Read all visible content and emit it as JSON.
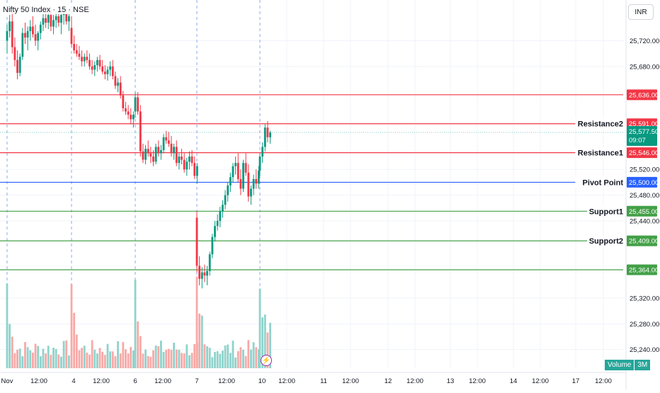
{
  "header": {
    "title": "Nifty 50 Index · 15 · NSE",
    "currency": "INR"
  },
  "price_axis": {
    "ticks": [
      25720,
      25680,
      25520,
      25480,
      25440,
      25320,
      25280,
      25240
    ],
    "tick_labels": [
      "25,720.00",
      "25,680.00",
      "25,520.00",
      "25,480.00",
      "25,440.00",
      "25,320.00",
      "25,280.00",
      "25,240.00"
    ]
  },
  "time_axis": {
    "labels": [
      "Nov",
      "12:00",
      "4",
      "12:00",
      "6",
      "12:00",
      "7",
      "12:00",
      "10",
      "12:00",
      "11",
      "12:00",
      "12",
      "12:00",
      "13",
      "12:00",
      "14",
      "12:00",
      "17",
      "12:00"
    ],
    "session_dividers": [
      "Nov",
      "4",
      "6",
      "7",
      "10"
    ]
  },
  "levels": [
    {
      "name": "",
      "value": 25636,
      "label": "25,636.00",
      "color": "#f23645"
    },
    {
      "name": "Resistance2",
      "value": 25591,
      "label": "25,591.00",
      "color": "#f23645"
    },
    {
      "name": "Resistance1",
      "value": 25546,
      "label": "25,546.00",
      "color": "#f23645"
    },
    {
      "name": "Pivot Point",
      "value": 25500,
      "label": "25,500.00",
      "color": "#2962ff"
    },
    {
      "name": "Support1",
      "value": 25455,
      "label": "25,455.00",
      "color": "#43a047"
    },
    {
      "name": "Support2",
      "value": 25409,
      "label": "25,409.00",
      "color": "#43a047"
    },
    {
      "name": "",
      "value": 25364,
      "label": "25,364.00",
      "color": "#43a047"
    }
  ],
  "current_price": {
    "value": 25577.5,
    "label": "25,577.50",
    "countdown": "09:07",
    "color": "#089981"
  },
  "volume_indicator": {
    "label": "Volume",
    "value": "3M"
  },
  "icons": {
    "replay": "lightning-icon"
  },
  "colors": {
    "up": "#089981",
    "down": "#f23645",
    "up_volume": "#8fd3cc",
    "down_volume": "#f7a9a7"
  },
  "chart_data": {
    "type": "candlestick",
    "title": "Nifty 50 Index · 15 · NSE",
    "y_range": [
      25220,
      25770
    ],
    "interval": "15 min",
    "sessions": [
      {
        "date": "Nov 3",
        "candles": [
          [
            25720,
            25745,
            25700,
            25735
          ],
          [
            25735,
            25760,
            25725,
            25750
          ],
          [
            25750,
            25765,
            25700,
            25710
          ],
          [
            25710,
            25725,
            25680,
            25690
          ],
          [
            25690,
            25705,
            25660,
            25670
          ],
          [
            25670,
            25700,
            25665,
            25695
          ],
          [
            25695,
            25740,
            25690,
            25732
          ],
          [
            25732,
            25748,
            25715,
            25725
          ],
          [
            25725,
            25742,
            25705,
            25735
          ],
          [
            25735,
            25752,
            25720,
            25742
          ],
          [
            25742,
            25758,
            25725,
            25730
          ],
          [
            25730,
            25745,
            25712,
            25720
          ],
          [
            25720,
            25735,
            25705,
            25732
          ],
          [
            25732,
            25750,
            25722,
            25745
          ],
          [
            25745,
            25762,
            25735,
            25755
          ],
          [
            25755,
            25768,
            25740,
            25748
          ],
          [
            25748,
            25765,
            25738,
            25760
          ],
          [
            25760,
            25770,
            25735,
            25742
          ],
          [
            25742,
            25760,
            25730,
            25752
          ],
          [
            25752,
            25766,
            25740,
            25758
          ],
          [
            25758,
            25768,
            25742,
            25748
          ],
          [
            25748,
            25763,
            25730,
            25760
          ],
          [
            25760,
            25770,
            25745,
            25762
          ],
          [
            25762,
            25770,
            25745,
            25750
          ],
          [
            25750,
            25768,
            25735,
            25758
          ]
        ]
      },
      {
        "date": "Nov 4",
        "candles": [
          [
            25740,
            25758,
            25710,
            25715
          ],
          [
            25715,
            25728,
            25700,
            25705
          ],
          [
            25705,
            25715,
            25695,
            25700
          ],
          [
            25700,
            25712,
            25690,
            25695
          ],
          [
            25695,
            25705,
            25680,
            25688
          ],
          [
            25688,
            25700,
            25680,
            25695
          ],
          [
            25695,
            25705,
            25685,
            25690
          ],
          [
            25690,
            25700,
            25675,
            25680
          ],
          [
            25680,
            25690,
            25668,
            25675
          ],
          [
            25675,
            25688,
            25665,
            25682
          ],
          [
            25682,
            25695,
            25672,
            25690
          ],
          [
            25690,
            25698,
            25675,
            25680
          ],
          [
            25680,
            25690,
            25668,
            25672
          ],
          [
            25672,
            25682,
            25660,
            25668
          ],
          [
            25668,
            25680,
            25658,
            25675
          ],
          [
            25675,
            25688,
            25665,
            25680
          ],
          [
            25680,
            25690,
            25660,
            25665
          ],
          [
            25665,
            25672,
            25645,
            25650
          ],
          [
            25650,
            25662,
            25640,
            25655
          ],
          [
            25655,
            25665,
            25630,
            25635
          ],
          [
            25635,
            25642,
            25610,
            25615
          ],
          [
            25615,
            25625,
            25605,
            25610
          ],
          [
            25610,
            25620,
            25598,
            25605
          ],
          [
            25605,
            25615,
            25590,
            25598
          ],
          [
            25598,
            25610,
            25585,
            25605
          ]
        ]
      },
      {
        "date": "Nov 6",
        "candles": [
          [
            25610,
            25640,
            25600,
            25632
          ],
          [
            25632,
            25640,
            25605,
            25610
          ],
          [
            25610,
            25620,
            25540,
            25548
          ],
          [
            25548,
            25560,
            25530,
            25535
          ],
          [
            25535,
            25558,
            25528,
            25552
          ],
          [
            25552,
            25565,
            25540,
            25545
          ],
          [
            25545,
            25555,
            25530,
            25540
          ],
          [
            25540,
            25550,
            25525,
            25532
          ],
          [
            25532,
            25560,
            25528,
            25555
          ],
          [
            25555,
            25565,
            25540,
            25545
          ],
          [
            25545,
            25558,
            25535,
            25550
          ],
          [
            25550,
            25575,
            25545,
            25570
          ],
          [
            25570,
            25580,
            25560,
            25565
          ],
          [
            25565,
            25578,
            25555,
            25560
          ],
          [
            25560,
            25572,
            25540,
            25545
          ],
          [
            25545,
            25560,
            25535,
            25555
          ],
          [
            25555,
            25565,
            25525,
            25530
          ],
          [
            25530,
            25545,
            25520,
            25540
          ],
          [
            25540,
            25552,
            25528,
            25535
          ],
          [
            25535,
            25545,
            25515,
            25520
          ],
          [
            25520,
            25538,
            25510,
            25532
          ],
          [
            25532,
            25548,
            25520,
            25540
          ],
          [
            25540,
            25550,
            25525,
            25530
          ],
          [
            25530,
            25540,
            25505,
            25510
          ],
          [
            25510,
            25530,
            25498,
            25525
          ]
        ]
      },
      {
        "date": "Nov 7",
        "candles": [
          [
            25445,
            25455,
            25360,
            25370
          ],
          [
            25370,
            25385,
            25340,
            25350
          ],
          [
            25350,
            25368,
            25335,
            25360
          ],
          [
            25360,
            25372,
            25345,
            25355
          ],
          [
            25355,
            25370,
            25340,
            25362
          ],
          [
            25362,
            25392,
            25355,
            25388
          ],
          [
            25388,
            25420,
            25382,
            25415
          ],
          [
            25415,
            25440,
            25408,
            25432
          ],
          [
            25432,
            25450,
            25425,
            25440
          ],
          [
            25440,
            25462,
            25430,
            25455
          ],
          [
            25455,
            25472,
            25445,
            25465
          ],
          [
            25465,
            25488,
            25458,
            25480
          ],
          [
            25480,
            25500,
            25470,
            25495
          ],
          [
            25495,
            25515,
            25485,
            25508
          ],
          [
            25508,
            25530,
            25500,
            25525
          ],
          [
            25525,
            25540,
            25512,
            25530
          ],
          [
            25530,
            25545,
            25500,
            25505
          ],
          [
            25505,
            25520,
            25480,
            25490
          ],
          [
            25490,
            25535,
            25485,
            25530
          ],
          [
            25530,
            25545,
            25510,
            25515
          ],
          [
            25515,
            25528,
            25470,
            25478
          ],
          [
            25478,
            25495,
            25465,
            25490
          ],
          [
            25490,
            25512,
            25480,
            25505
          ],
          [
            25505,
            25520,
            25490,
            25498
          ],
          [
            25498,
            25525,
            25490,
            25518
          ]
        ]
      },
      {
        "date": "Nov 10",
        "candles": [
          [
            25518,
            25545,
            25510,
            25540
          ],
          [
            25540,
            25562,
            25530,
            25555
          ],
          [
            25555,
            25590,
            25548,
            25585
          ],
          [
            25585,
            25595,
            25562,
            25570
          ],
          [
            25570,
            25580,
            25560,
            25577.5
          ]
        ]
      }
    ]
  }
}
